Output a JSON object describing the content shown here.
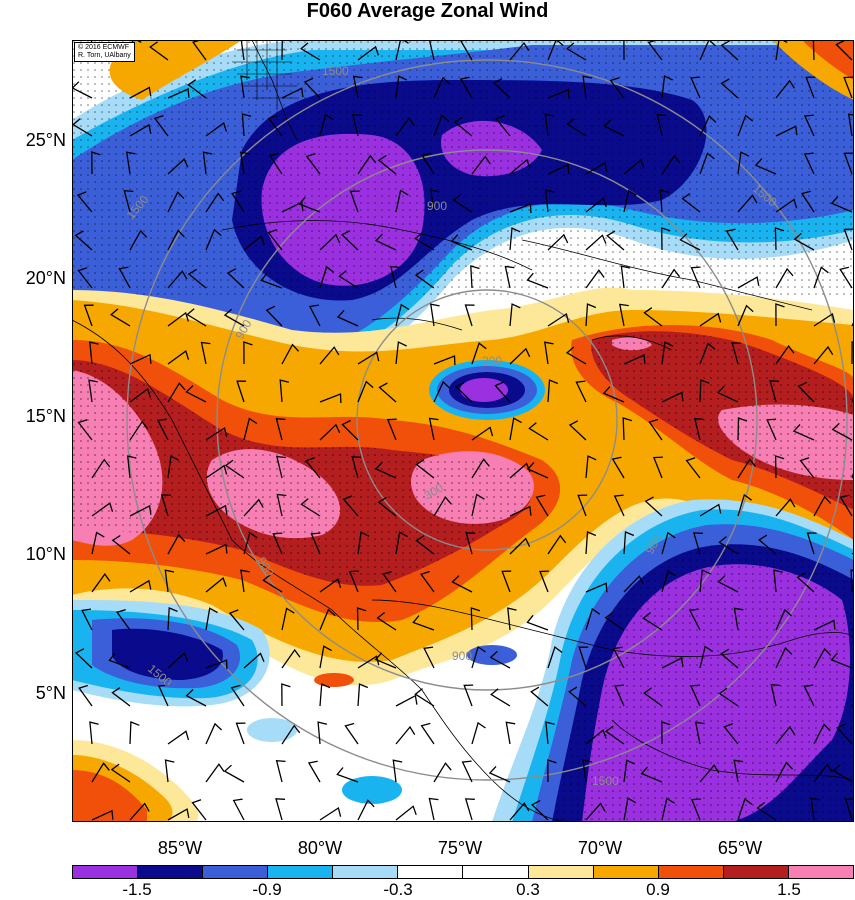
{
  "title": "F060 Average Zonal Wind",
  "copyright": [
    "© 2016 ECMWF",
    "R. Torn, UAlbany"
  ],
  "lat_labels": [
    "25°N",
    "20°N",
    "15°N",
    "10°N",
    "5°N"
  ],
  "lon_labels": [
    "85°W",
    "80°W",
    "75°W",
    "70°W",
    "65°W"
  ],
  "colorbar": {
    "colors": [
      "#9b30e0",
      "#0a0a8c",
      "#3a5fd8",
      "#19b4f0",
      "#a6dcf8",
      "#ffffff",
      "#ffffff",
      "#fde89a",
      "#f7a800",
      "#f0500a",
      "#b41e1e",
      "#f77fb4"
    ],
    "labels": [
      "-1.5",
      "-0.9",
      "-0.3",
      "0.3",
      "0.9",
      "1.5"
    ]
  },
  "contour_labels": [
    "1500",
    "1500",
    "900",
    "900",
    "300",
    "300",
    "900",
    "1500",
    "1500",
    "900",
    "1500",
    "900"
  ]
}
